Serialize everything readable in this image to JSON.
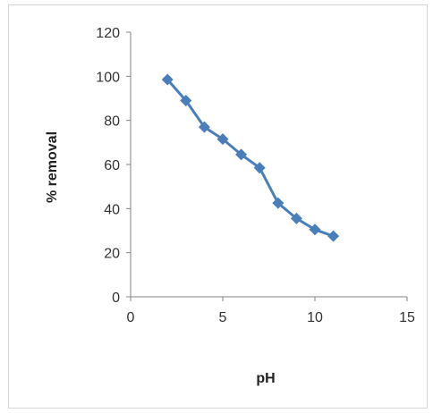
{
  "chart_data": {
    "type": "line",
    "title": "",
    "xlabel": "pH",
    "ylabel": "% removal",
    "xlim": [
      0,
      15
    ],
    "ylim": [
      0,
      120
    ],
    "x_ticks": [
      0,
      5,
      10,
      15
    ],
    "y_ticks": [
      0,
      20,
      40,
      60,
      80,
      100,
      120
    ],
    "grid": false,
    "legend": "none",
    "series": [
      {
        "marker": "diamond",
        "color": "#4a7ebb",
        "x": [
          2,
          3,
          4,
          5,
          6,
          7,
          8,
          9,
          10,
          11
        ],
        "y": [
          98.5,
          89,
          77,
          71.5,
          64.5,
          58.5,
          42.5,
          35.5,
          30.5,
          27.5
        ]
      }
    ]
  }
}
